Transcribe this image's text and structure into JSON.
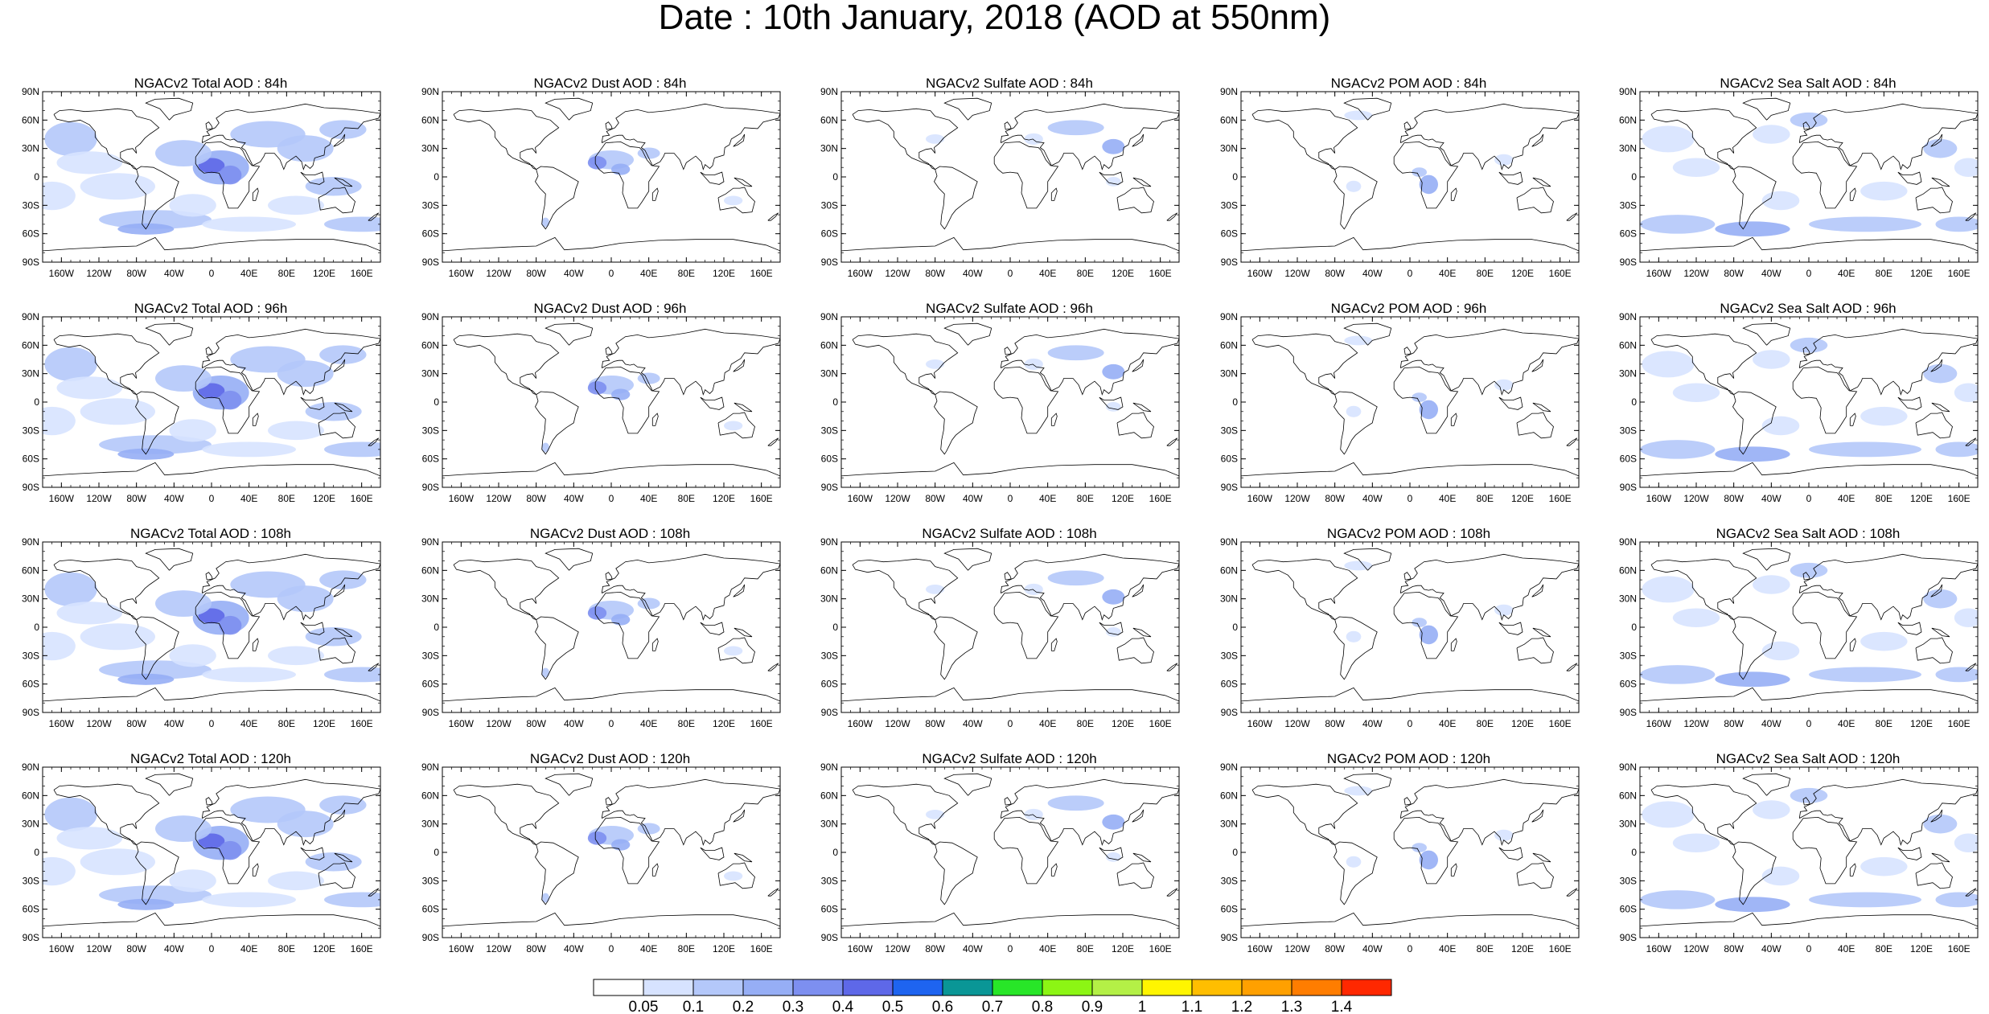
{
  "title": "Date : 10th January, 2018 (AOD at 550nm)",
  "lat_labels": [
    "90N",
    "60N",
    "30N",
    "0",
    "30S",
    "60S",
    "90S"
  ],
  "lon_labels": [
    "160W",
    "120W",
    "80W",
    "40W",
    "0",
    "40E",
    "80E",
    "120E",
    "160E"
  ],
  "panels": [
    {
      "title": "NGACv2 Total AOD : 84h",
      "species": "total"
    },
    {
      "title": "NGACv2 Dust AOD : 84h",
      "species": "dust"
    },
    {
      "title": "NGACv2 Sulfate AOD : 84h",
      "species": "sulfate"
    },
    {
      "title": "NGACv2 POM AOD : 84h",
      "species": "pom"
    },
    {
      "title": "NGACv2 Sea Salt AOD : 84h",
      "species": "seasalt"
    },
    {
      "title": "NGACv2 Total AOD : 96h",
      "species": "total"
    },
    {
      "title": "NGACv2 Dust AOD : 96h",
      "species": "dust"
    },
    {
      "title": "NGACv2 Sulfate AOD : 96h",
      "species": "sulfate"
    },
    {
      "title": "NGACv2 POM AOD : 96h",
      "species": "pom"
    },
    {
      "title": "NGACv2 Sea Salt AOD : 96h",
      "species": "seasalt"
    },
    {
      "title": "NGACv2 Total AOD : 108h",
      "species": "total"
    },
    {
      "title": "NGACv2 Dust AOD : 108h",
      "species": "dust"
    },
    {
      "title": "NGACv2 Sulfate AOD : 108h",
      "species": "sulfate"
    },
    {
      "title": "NGACv2 POM AOD : 108h",
      "species": "pom"
    },
    {
      "title": "NGACv2 Sea Salt AOD : 108h",
      "species": "seasalt"
    },
    {
      "title": "NGACv2 Total AOD : 120h",
      "species": "total"
    },
    {
      "title": "NGACv2 Dust AOD : 120h",
      "species": "dust"
    },
    {
      "title": "NGACv2 Sulfate AOD : 120h",
      "species": "sulfate"
    },
    {
      "title": "NGACv2 POM AOD : 120h",
      "species": "pom"
    },
    {
      "title": "NGACv2 Sea Salt  AOD : 120h",
      "species": "seasalt"
    }
  ],
  "colorbar": {
    "labels": [
      "0.05",
      "0.1",
      "0.2",
      "0.3",
      "0.4",
      "0.5",
      "0.6",
      "0.7",
      "0.8",
      "0.9",
      "1",
      "1.1",
      "1.2",
      "1.3",
      "1.4"
    ],
    "colors": [
      "#ffffff",
      "#d7e3ff",
      "#b4c8fa",
      "#96aef5",
      "#7d8ff0",
      "#5e68e8",
      "#1e64f0",
      "#0a9696",
      "#28e628",
      "#8cf514",
      "#b4f046",
      "#fff500",
      "#ffbe00",
      "#ffa000",
      "#ff7d00",
      "#ff2800"
    ]
  },
  "colors": {
    "land_outline": "#000000",
    "frame": "#000000"
  }
}
